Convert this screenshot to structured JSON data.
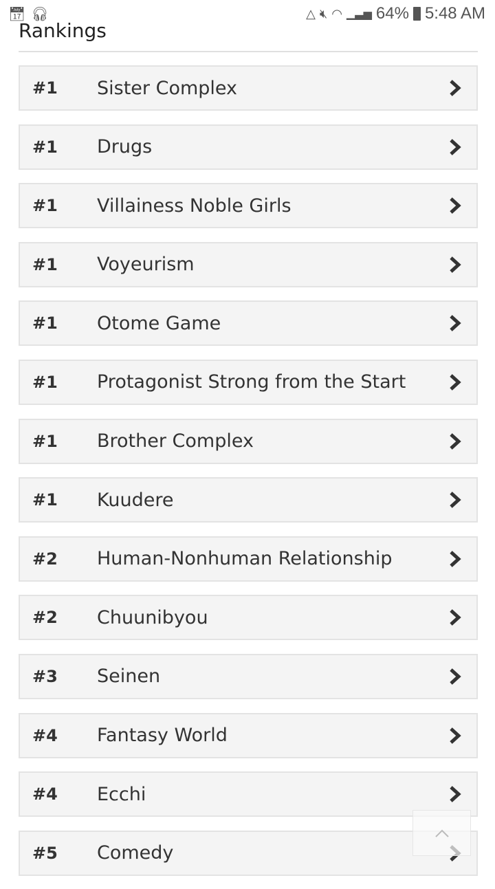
{
  "status_bar": {
    "left_icons": [
      "calendar-icon",
      "headset-icon"
    ],
    "right_icons": [
      "data-saver-icon",
      "mute-icon",
      "wifi-icon",
      "signal-icon",
      "battery-charging-icon"
    ],
    "battery": "64%",
    "time": "5:48 AM"
  },
  "section": {
    "title": "Rankings"
  },
  "rankings": [
    {
      "rank": "#1",
      "label": "Sister Complex"
    },
    {
      "rank": "#1",
      "label": "Drugs"
    },
    {
      "rank": "#1",
      "label": "Villainess Noble Girls"
    },
    {
      "rank": "#1",
      "label": "Voyeurism"
    },
    {
      "rank": "#1",
      "label": "Otome Game"
    },
    {
      "rank": "#1",
      "label": "Protagonist Strong from the Start"
    },
    {
      "rank": "#1",
      "label": "Brother Complex"
    },
    {
      "rank": "#1",
      "label": "Kuudere"
    },
    {
      "rank": "#2",
      "label": "Human-Nonhuman Relationship"
    },
    {
      "rank": "#2",
      "label": "Chuunibyou"
    },
    {
      "rank": "#3",
      "label": "Seinen"
    },
    {
      "rank": "#4",
      "label": "Fantasy World"
    },
    {
      "rank": "#4",
      "label": "Ecchi"
    },
    {
      "rank": "#5",
      "label": "Comedy"
    }
  ],
  "colors": {
    "row_bg": "#f4f4f4",
    "row_border": "#e3e3e3",
    "text": "#333333"
  }
}
